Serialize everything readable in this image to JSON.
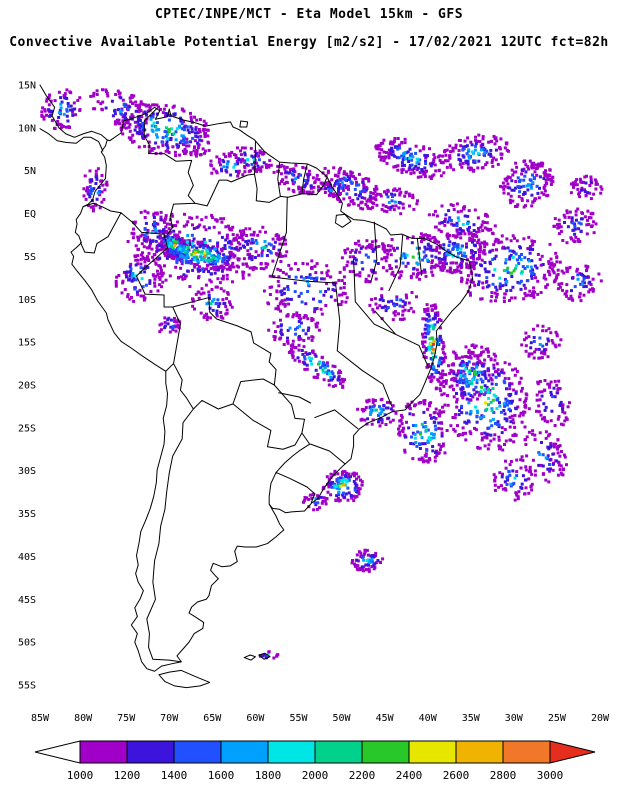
{
  "header": {
    "line1": "CPTEC/INPE/MCT -  Eta Model 15km - GFS",
    "line2": "Convective Available Potential Energy [m2/s2] - 17/02/2021 12UTC fct=82h"
  },
  "map": {
    "lat_ticks": [
      "15N",
      "10N",
      "5N",
      "EQ",
      "5S",
      "10S",
      "15S",
      "20S",
      "25S",
      "30S",
      "35S",
      "40S",
      "45S",
      "50S",
      "55S"
    ],
    "lat_values": [
      15,
      10,
      5,
      0,
      -5,
      -10,
      -15,
      -20,
      -25,
      -30,
      -35,
      -40,
      -45,
      -50,
      -55
    ],
    "lon_ticks": [
      "85W",
      "80W",
      "75W",
      "70W",
      "65W",
      "60W",
      "55W",
      "50W",
      "45W",
      "40W",
      "35W",
      "30W",
      "25W",
      "20W"
    ],
    "lon_values": [
      -85,
      -80,
      -75,
      -70,
      -65,
      -60,
      -55,
      -50,
      -45,
      -40,
      -35,
      -30,
      -25,
      -20
    ]
  },
  "colorbar": {
    "labels": [
      "1000",
      "1200",
      "1400",
      "1600",
      "1800",
      "2000",
      "2200",
      "2400",
      "2600",
      "2800",
      "3000"
    ],
    "segment_colors": [
      "#a000c8",
      "#3c14dc",
      "#2050ff",
      "#00a0ff",
      "#00e6e6",
      "#00d28c",
      "#28c828",
      "#e6e600",
      "#f0b400",
      "#f07828"
    ],
    "under_color": "#ffffff",
    "over_color": "#e62e1e"
  },
  "chart_data": {
    "type": "heatmap",
    "title": "Convective Available Potential Energy",
    "units": "m2/s2",
    "source": "CPTEC/INPE/MCT",
    "model": "Eta Model 15km - GFS",
    "valid": "17/02/2021 12UTC",
    "forecast": "fct=82h",
    "levels": [
      1000,
      1200,
      1400,
      1600,
      1800,
      2000,
      2200,
      2400,
      2600,
      2800,
      3000
    ],
    "palette_hex": [
      "#a000c8",
      "#3c14dc",
      "#2050ff",
      "#00a0ff",
      "#00e6e6",
      "#00d28c",
      "#28c828",
      "#e6e600",
      "#f0b400",
      "#f07828",
      "#e62e1e"
    ],
    "cluster_fields": [
      "lon",
      "lat",
      "rx_deg",
      "ry_deg",
      "rot_deg",
      "n_cells",
      "max_level"
    ],
    "clusters": [
      [
        -70.5,
        9.8,
        6.0,
        3.0,
        -15,
        280,
        8
      ],
      [
        -75.8,
        12.3,
        4.0,
        2.0,
        -20,
        90,
        5
      ],
      [
        -82.5,
        12.2,
        2.6,
        2.4,
        0,
        80,
        6
      ],
      [
        -78.6,
        2.8,
        1.5,
        2.6,
        0,
        60,
        6
      ],
      [
        -66.5,
        -4.8,
        4.8,
        1.6,
        -12,
        240,
        11
      ],
      [
        -69.5,
        -3.6,
        2.0,
        1.3,
        -35,
        110,
        11
      ],
      [
        -67.0,
        -4.2,
        8.0,
        4.5,
        -8,
        280,
        7
      ],
      [
        -73.5,
        -7.5,
        2.8,
        3.0,
        0,
        90,
        6
      ],
      [
        -72.0,
        -2.0,
        2.5,
        2.5,
        0,
        80,
        6
      ],
      [
        -59.5,
        -4.0,
        3.5,
        2.5,
        0,
        110,
        7
      ],
      [
        -54.0,
        -9.0,
        5.0,
        3.5,
        0,
        140,
        7
      ],
      [
        -47.0,
        -5.5,
        3.0,
        2.5,
        0,
        80,
        6
      ],
      [
        -41.5,
        -5.0,
        4.0,
        2.8,
        0,
        130,
        7
      ],
      [
        -44.0,
        1.5,
        3.0,
        1.5,
        -10,
        60,
        5
      ],
      [
        -36.0,
        -1.0,
        4.0,
        2.0,
        -15,
        100,
        6
      ],
      [
        -36.5,
        -4.5,
        3.5,
        2.5,
        10,
        150,
        7
      ],
      [
        -30.5,
        -6.5,
        6.0,
        4.0,
        10,
        260,
        8
      ],
      [
        -22.5,
        -8.0,
        2.8,
        2.2,
        0,
        80,
        5
      ],
      [
        -39.3,
        -15.3,
        1.3,
        5.2,
        5,
        170,
        11
      ],
      [
        -33.5,
        -21.5,
        5.0,
        6.5,
        25,
        340,
        9
      ],
      [
        -35.0,
        -19.0,
        2.5,
        3.0,
        20,
        120,
        10
      ],
      [
        -40.5,
        -25.5,
        3.0,
        3.8,
        15,
        160,
        9
      ],
      [
        -52.8,
        -17.8,
        4.0,
        1.3,
        -35,
        100,
        10
      ],
      [
        -45.8,
        -23.2,
        2.4,
        1.6,
        0,
        70,
        8
      ],
      [
        -49.8,
        -31.8,
        2.4,
        2.0,
        0,
        130,
        9
      ],
      [
        -47.0,
        -40.5,
        1.9,
        1.3,
        0,
        70,
        6
      ],
      [
        -26.5,
        -28.5,
        2.5,
        3.5,
        20,
        90,
        5
      ],
      [
        -30.0,
        -31.0,
        2.5,
        2.5,
        15,
        80,
        6
      ],
      [
        -25.5,
        -22.0,
        2.2,
        3.0,
        20,
        70,
        5
      ],
      [
        -27.0,
        -15.0,
        2.5,
        2.0,
        15,
        60,
        5
      ],
      [
        -63.0,
        5.5,
        2.5,
        1.5,
        0,
        45,
        7
      ],
      [
        -51.0,
        2.8,
        2.0,
        1.2,
        0,
        45,
        5
      ],
      [
        -58.5,
        -51.5,
        1.2,
        0.5,
        0,
        15,
        6
      ],
      [
        -70.0,
        -13.0,
        1.5,
        1.2,
        0,
        30,
        5
      ],
      [
        -44.0,
        -10.5,
        3.0,
        2.0,
        0,
        60,
        5
      ],
      [
        -49.0,
        3.0,
        4.0,
        2.0,
        -25,
        150,
        6
      ],
      [
        -42.0,
        6.5,
        4.5,
        2.0,
        -20,
        160,
        6
      ],
      [
        -34.5,
        7.0,
        4.0,
        2.2,
        10,
        150,
        6
      ],
      [
        -28.5,
        3.5,
        3.2,
        2.8,
        20,
        160,
        6
      ],
      [
        -55.0,
        4.0,
        3.0,
        1.6,
        -20,
        90,
        5
      ],
      [
        -60.5,
        6.3,
        2.6,
        1.4,
        -15,
        70,
        6
      ],
      [
        -23.0,
        -1.5,
        2.8,
        2.0,
        15,
        80,
        5
      ],
      [
        -21.5,
        3.0,
        2.0,
        1.5,
        0,
        50,
        4
      ],
      [
        -65.0,
        -10.5,
        2.5,
        2.0,
        0,
        70,
        6
      ],
      [
        -53.0,
        -33.6,
        1.5,
        1.0,
        0,
        30,
        7
      ],
      [
        -55.5,
        -13.5,
        3.0,
        2.0,
        0,
        70,
        6
      ]
    ]
  }
}
